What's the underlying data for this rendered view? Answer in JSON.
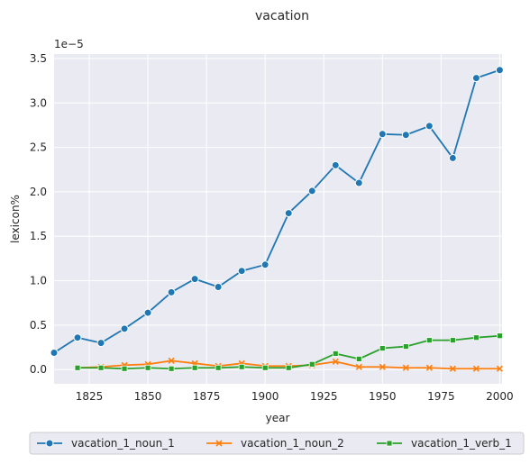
{
  "chart_data": {
    "type": "line",
    "title": "vacation",
    "xlabel": "year",
    "ylabel": "lexicon%",
    "y_offset_text": "1e−5",
    "xlim": [
      1810,
      2001
    ],
    "ylim": [
      -0.16,
      3.55
    ],
    "y_scale_note": "values in units of 1e-5",
    "x_ticks": [
      1825,
      1850,
      1875,
      1900,
      1925,
      1950,
      1975,
      2000
    ],
    "x_tick_labels": [
      "1825",
      "1850",
      "1875",
      "1900",
      "1925",
      "1950",
      "1975",
      "2000"
    ],
    "y_ticks": [
      0.0,
      0.5,
      1.0,
      1.5,
      2.0,
      2.5,
      3.0,
      3.5
    ],
    "y_tick_labels": [
      "0.0",
      "0.5",
      "1.0",
      "1.5",
      "2.0",
      "2.5",
      "3.0",
      "3.5"
    ],
    "grid": true,
    "legend_position": "bottom-center",
    "series": [
      {
        "name": "vacation_1_noun_1",
        "color": "#1f77b4",
        "marker": "circle",
        "x": [
          1810,
          1820,
          1830,
          1840,
          1850,
          1860,
          1870,
          1880,
          1890,
          1900,
          1910,
          1920,
          1930,
          1940,
          1950,
          1960,
          1970,
          1980,
          1990,
          2000
        ],
        "y": [
          0.19,
          0.36,
          0.3,
          0.46,
          0.64,
          0.87,
          1.02,
          0.93,
          1.11,
          1.18,
          1.76,
          2.01,
          2.3,
          2.1,
          2.65,
          2.64,
          2.74,
          2.38,
          3.28,
          3.37
        ]
      },
      {
        "name": "vacation_1_noun_2",
        "color": "#ff7f0e",
        "marker": "x",
        "x": [
          1820,
          1830,
          1840,
          1850,
          1860,
          1870,
          1880,
          1890,
          1900,
          1910,
          1920,
          1930,
          1940,
          1950,
          1960,
          1970,
          1980,
          1990,
          2000
        ],
        "y": [
          0.02,
          0.03,
          0.05,
          0.06,
          0.1,
          0.07,
          0.04,
          0.07,
          0.04,
          0.04,
          0.05,
          0.09,
          0.03,
          0.03,
          0.02,
          0.02,
          0.01,
          0.01,
          0.01
        ]
      },
      {
        "name": "vacation_1_verb_1",
        "color": "#2ca02c",
        "marker": "square",
        "x": [
          1820,
          1830,
          1840,
          1850,
          1860,
          1870,
          1880,
          1890,
          1900,
          1910,
          1920,
          1930,
          1940,
          1950,
          1960,
          1970,
          1980,
          1990,
          2000
        ],
        "y": [
          0.02,
          0.02,
          0.01,
          0.02,
          0.01,
          0.02,
          0.02,
          0.03,
          0.02,
          0.02,
          0.06,
          0.18,
          0.12,
          0.24,
          0.26,
          0.33,
          0.33,
          0.36,
          0.38
        ]
      }
    ]
  }
}
